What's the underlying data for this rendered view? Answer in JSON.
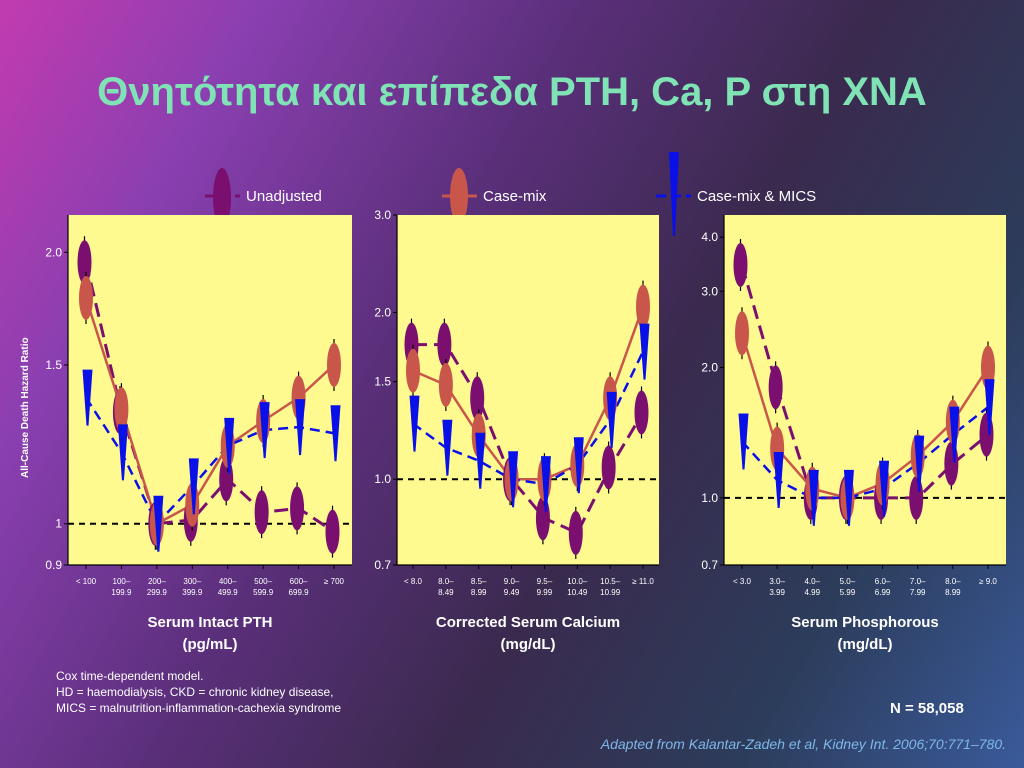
{
  "title": "Θνητότητα και επίπεδα PTH, Ca, P στη ΧΝΑ",
  "legend": [
    "Unadjusted",
    "Case-mix",
    "Case-mix & MICS"
  ],
  "colors": {
    "unadjusted": "#7a0f70",
    "casemix": "#c8564a",
    "mics": "#0a10e8",
    "plot_bg": "#fffa90",
    "title": "#7fe3b6"
  },
  "ylabel": "All-Cause Death Hazard Ratio",
  "footnote": [
    "Cox time-dependent model.",
    "HD = haemodialysis, CKD = chronic kidney disease,",
    "MICS = malnutrition-inflammation-cachexia syndrome"
  ],
  "n_label": "N = 58,058",
  "citation": "Adapted from Kalantar-Zadeh et al, Kidney Int. 2006;70:771–780.",
  "chart_data": [
    {
      "type": "line",
      "xlabel": [
        "Serum Intact PTH",
        "(pg/mL)"
      ],
      "categories": [
        [
          "< 100"
        ],
        [
          "100–",
          "199.9"
        ],
        [
          "200–",
          "299.9"
        ],
        [
          "300–",
          "399.9"
        ],
        [
          "400–",
          "499.9"
        ],
        [
          "500–",
          "599.9"
        ],
        [
          "600–",
          "699.9"
        ],
        [
          "≥ 700"
        ]
      ],
      "yticks": [
        [
          "0.9",
          0.9
        ],
        [
          "1",
          1.0
        ],
        [
          "1.5",
          1.5
        ],
        [
          "2.0",
          2.0
        ]
      ],
      "ylim": [
        0.9,
        2.2
      ],
      "series": [
        {
          "name": "Unadjusted",
          "values": [
            1.95,
            1.33,
            1.0,
            1.01,
            1.12,
            1.03,
            1.04,
            0.98
          ]
        },
        {
          "name": "Case-mix",
          "values": [
            1.78,
            1.34,
            1.0,
            1.05,
            1.22,
            1.3,
            1.38,
            1.5
          ]
        },
        {
          "name": "Case-mix & MICS",
          "values": [
            1.38,
            1.2,
            1.0,
            1.1,
            1.22,
            1.27,
            1.28,
            1.26
          ]
        }
      ]
    },
    {
      "type": "line",
      "xlabel": [
        "Corrected Serum Calcium",
        "(mg/dL)"
      ],
      "categories": [
        [
          "< 8.0"
        ],
        [
          "8.0–",
          "8.49"
        ],
        [
          "8.5–",
          "8.99"
        ],
        [
          "9.0–",
          "9.49"
        ],
        [
          "9.5–",
          "9.99"
        ],
        [
          "10.0–",
          "10.49"
        ],
        [
          "10.5–",
          "10.99"
        ],
        [
          "≥ 11.0"
        ]
      ],
      "yticks": [
        [
          "0.7",
          0.7
        ],
        [
          "1.0",
          1.0
        ],
        [
          "1.5",
          1.5
        ],
        [
          "2.0",
          2.0
        ],
        [
          "3.0",
          3.0
        ]
      ],
      "ylim": [
        0.7,
        3.0
      ],
      "series": [
        {
          "name": "Unadjusted",
          "values": [
            1.75,
            1.75,
            1.4,
            1.0,
            0.85,
            0.8,
            1.05,
            1.32
          ]
        },
        {
          "name": "Case-mix",
          "values": [
            1.57,
            1.48,
            1.2,
            1.0,
            1.0,
            1.06,
            1.4,
            2.05
          ]
        },
        {
          "name": "Case-mix & MICS",
          "values": [
            1.26,
            1.14,
            1.08,
            1.0,
            0.98,
            1.06,
            1.28,
            1.7
          ]
        }
      ]
    },
    {
      "type": "line",
      "xlabel": [
        "Serum Phosphorous",
        "(mg/dL)"
      ],
      "categories": [
        [
          "< 3.0"
        ],
        [
          "3.0–",
          "3.99"
        ],
        [
          "4.0–",
          "4.99"
        ],
        [
          "5.0–",
          "5.99"
        ],
        [
          "6.0–",
          "6.99"
        ],
        [
          "7.0–",
          "7.99"
        ],
        [
          "8.0–",
          "8.99"
        ],
        [
          "≥ 9.0"
        ]
      ],
      "yticks": [
        [
          "0.7",
          0.7
        ],
        [
          "1.0",
          1.0
        ],
        [
          "2.0",
          2.0
        ],
        [
          "3.0",
          3.0
        ],
        [
          "4.0",
          4.0
        ]
      ],
      "ylim": [
        0.7,
        4.5
      ],
      "series": [
        {
          "name": "Unadjusted",
          "values": [
            3.45,
            1.8,
            1.0,
            1.0,
            1.0,
            1.0,
            1.2,
            1.4
          ]
        },
        {
          "name": "Case-mix",
          "values": [
            2.4,
            1.3,
            1.05,
            1.0,
            1.08,
            1.25,
            1.5,
            2.0
          ]
        },
        {
          "name": "Case-mix & MICS",
          "values": [
            1.35,
            1.1,
            1.0,
            1.0,
            1.05,
            1.2,
            1.4,
            1.62
          ]
        }
      ]
    }
  ]
}
